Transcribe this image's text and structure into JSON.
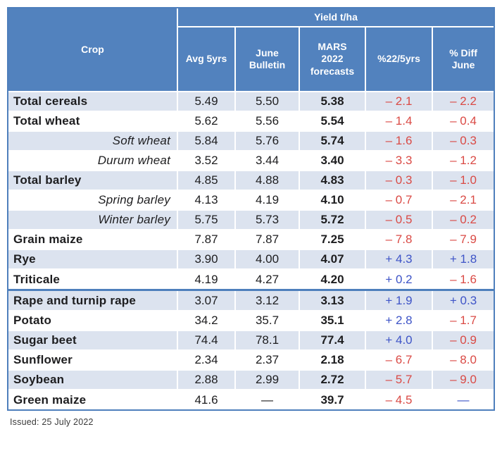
{
  "table": {
    "yield_header": "Yield t/ha",
    "crop_header": "Crop",
    "columns": [
      "Avg 5yrs",
      "June Bulletin",
      "MARS 2022 forecasts",
      "%22/5yrs",
      "% Diff June"
    ],
    "rows": [
      {
        "crop": "Total cereals",
        "variant": "main",
        "cells": [
          {
            "t": "5.49"
          },
          {
            "t": "5.50"
          },
          {
            "t": "5.38"
          },
          {
            "t": "– 2.1",
            "c": "neg"
          },
          {
            "t": "– 2.2",
            "c": "neg"
          }
        ]
      },
      {
        "crop": "Total wheat",
        "variant": "main",
        "cells": [
          {
            "t": "5.62"
          },
          {
            "t": "5.56"
          },
          {
            "t": "5.54"
          },
          {
            "t": "– 1.4",
            "c": "neg"
          },
          {
            "t": "– 0.4",
            "c": "neg"
          }
        ]
      },
      {
        "crop": "Soft wheat",
        "variant": "sub",
        "cells": [
          {
            "t": "5.84"
          },
          {
            "t": "5.76"
          },
          {
            "t": "5.74"
          },
          {
            "t": "– 1.6",
            "c": "neg"
          },
          {
            "t": "– 0.3",
            "c": "neg"
          }
        ]
      },
      {
        "crop": "Durum wheat",
        "variant": "sub",
        "cells": [
          {
            "t": "3.52"
          },
          {
            "t": "3.44"
          },
          {
            "t": "3.40"
          },
          {
            "t": "– 3.3",
            "c": "neg"
          },
          {
            "t": "– 1.2",
            "c": "neg"
          }
        ]
      },
      {
        "crop": "Total barley",
        "variant": "main",
        "cells": [
          {
            "t": "4.85"
          },
          {
            "t": "4.88"
          },
          {
            "t": "4.83"
          },
          {
            "t": "– 0.3",
            "c": "neg"
          },
          {
            "t": "– 1.0",
            "c": "neg"
          }
        ]
      },
      {
        "crop": "Spring barley",
        "variant": "sub",
        "cells": [
          {
            "t": "4.13"
          },
          {
            "t": "4.19"
          },
          {
            "t": "4.10"
          },
          {
            "t": "– 0.7",
            "c": "neg"
          },
          {
            "t": "– 2.1",
            "c": "neg"
          }
        ]
      },
      {
        "crop": "Winter barley",
        "variant": "sub",
        "cells": [
          {
            "t": "5.75"
          },
          {
            "t": "5.73"
          },
          {
            "t": "5.72"
          },
          {
            "t": "– 0.5",
            "c": "neg"
          },
          {
            "t": "– 0.2",
            "c": "neg"
          }
        ]
      },
      {
        "crop": "Grain maize",
        "variant": "main",
        "cells": [
          {
            "t": "7.87"
          },
          {
            "t": "7.87"
          },
          {
            "t": "7.25"
          },
          {
            "t": "– 7.8",
            "c": "neg"
          },
          {
            "t": "– 7.9",
            "c": "neg"
          }
        ]
      },
      {
        "crop": "Rye",
        "variant": "main",
        "cells": [
          {
            "t": "3.90"
          },
          {
            "t": "4.00"
          },
          {
            "t": "4.07"
          },
          {
            "t": "+ 4.3",
            "c": "pos"
          },
          {
            "t": "+ 1.8",
            "c": "pos"
          }
        ]
      },
      {
        "crop": "Triticale",
        "variant": "main",
        "cells": [
          {
            "t": "4.19"
          },
          {
            "t": "4.27"
          },
          {
            "t": "4.20"
          },
          {
            "t": "+ 0.2",
            "c": "pos"
          },
          {
            "t": "– 1.6",
            "c": "neg"
          }
        ]
      },
      {
        "crop": "Rape and turnip rape",
        "variant": "main",
        "sep_before": true,
        "cells": [
          {
            "t": "3.07"
          },
          {
            "t": "3.12"
          },
          {
            "t": "3.13"
          },
          {
            "t": "+ 1.9",
            "c": "pos"
          },
          {
            "t": "+ 0.3",
            "c": "pos"
          }
        ]
      },
      {
        "crop": "Potato",
        "variant": "main",
        "cells": [
          {
            "t": "34.2"
          },
          {
            "t": "35.7"
          },
          {
            "t": "35.1"
          },
          {
            "t": "+ 2.8",
            "c": "pos"
          },
          {
            "t": "– 1.7",
            "c": "neg"
          }
        ]
      },
      {
        "crop": "Sugar beet",
        "variant": "main",
        "cells": [
          {
            "t": "74.4"
          },
          {
            "t": "78.1"
          },
          {
            "t": "77.4"
          },
          {
            "t": "+ 4.0",
            "c": "pos"
          },
          {
            "t": "– 0.9",
            "c": "neg"
          }
        ]
      },
      {
        "crop": "Sunflower",
        "variant": "main",
        "cells": [
          {
            "t": "2.34"
          },
          {
            "t": "2.37"
          },
          {
            "t": "2.18"
          },
          {
            "t": "– 6.7",
            "c": "neg"
          },
          {
            "t": "– 8.0",
            "c": "neg"
          }
        ]
      },
      {
        "crop": "Soybean",
        "variant": "main",
        "cells": [
          {
            "t": "2.88"
          },
          {
            "t": "2.99"
          },
          {
            "t": "2.72"
          },
          {
            "t": "– 5.7",
            "c": "neg"
          },
          {
            "t": "– 9.0",
            "c": "neg"
          }
        ]
      },
      {
        "crop": "Green maize",
        "variant": "main",
        "cells": [
          {
            "t": "41.6"
          },
          {
            "t": "—",
            "c": "dark"
          },
          {
            "t": "39.7"
          },
          {
            "t": "– 4.5",
            "c": "neg"
          },
          {
            "t": "—",
            "c": "pos"
          }
        ]
      }
    ]
  },
  "footer": {
    "issued": "Issued: 25 July 2022"
  },
  "colors": {
    "header-blue": "#5282BE",
    "border-blue": "#4E7FBC",
    "row-shade": "#DCE3EF",
    "neg-red": "#DA4A45",
    "pos-blue": "#3E54C7",
    "text-dark": "#1D1D1F"
  }
}
